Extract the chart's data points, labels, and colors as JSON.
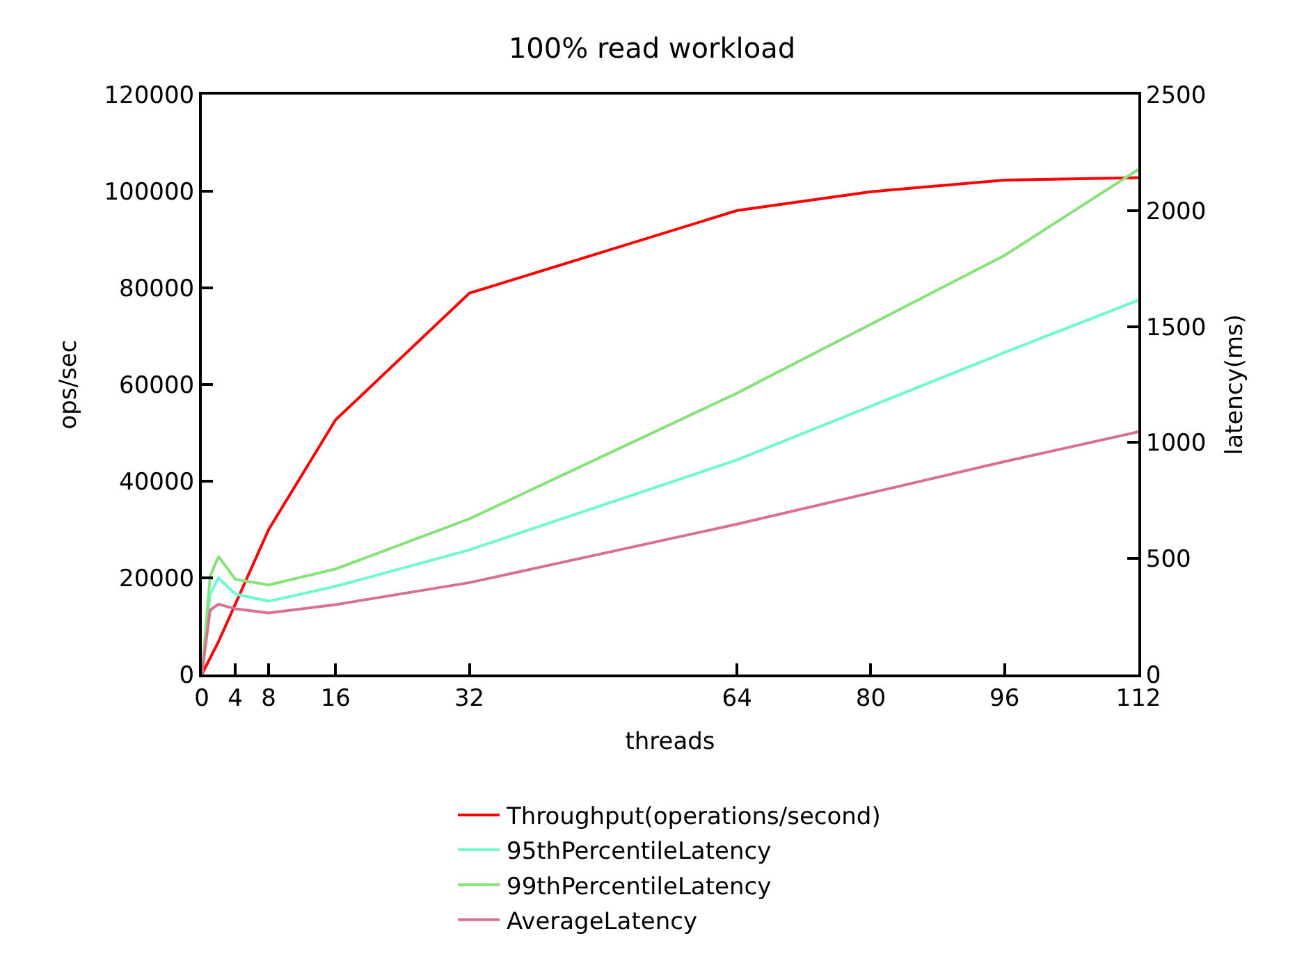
{
  "chart_data": {
    "type": "line",
    "title": "100% read workload",
    "xlabel": "threads",
    "ylabel": "ops/sec",
    "y2label": "latency(ms)",
    "xlim": [
      0,
      112
    ],
    "xticks": [
      0,
      4,
      8,
      16,
      32,
      64,
      80,
      96,
      112
    ],
    "ylim": [
      0,
      120000
    ],
    "yticks": [
      0,
      20000,
      40000,
      60000,
      80000,
      100000,
      120000
    ],
    "y2lim": [
      0,
      2500
    ],
    "y2ticks": [
      0,
      500,
      1000,
      1500,
      2000,
      2500
    ],
    "legend": "bottom",
    "marker": "none",
    "line_style": "solid",
    "series": [
      {
        "name": "Throughput(operations/second)",
        "color": "#ff0000",
        "x": [
          0,
          2,
          8,
          16,
          32,
          64,
          80,
          96,
          112
        ],
        "values": [
          0,
          6800,
          30000,
          52700,
          78900,
          96000,
          99900,
          102300,
          102800
        ]
      },
      {
        "name": "95thPercentileLatency",
        "color": "#70f8d0",
        "axis": "y2",
        "x": [
          0,
          1,
          2,
          4,
          8,
          16,
          32,
          64,
          96,
          112
        ],
        "values": [
          0,
          347,
          416,
          347,
          316,
          380,
          537,
          925,
          1388,
          1614
        ]
      },
      {
        "name": "99thPercentileLatency",
        "color": "#88e27a",
        "axis": "y2",
        "x": [
          0,
          1,
          2,
          4,
          8,
          16,
          32,
          64,
          96,
          112
        ],
        "values": [
          0,
          424,
          509,
          411,
          386,
          455,
          671,
          1213,
          1807,
          2177
        ]
      },
      {
        "name": "AverageLatency",
        "color": "#d87090",
        "axis": "y2",
        "x": [
          0,
          1,
          2,
          4,
          8,
          16,
          32,
          64,
          96,
          112
        ],
        "values": [
          0,
          278,
          303,
          283,
          265,
          301,
          396,
          648,
          918,
          1046
        ]
      }
    ]
  }
}
